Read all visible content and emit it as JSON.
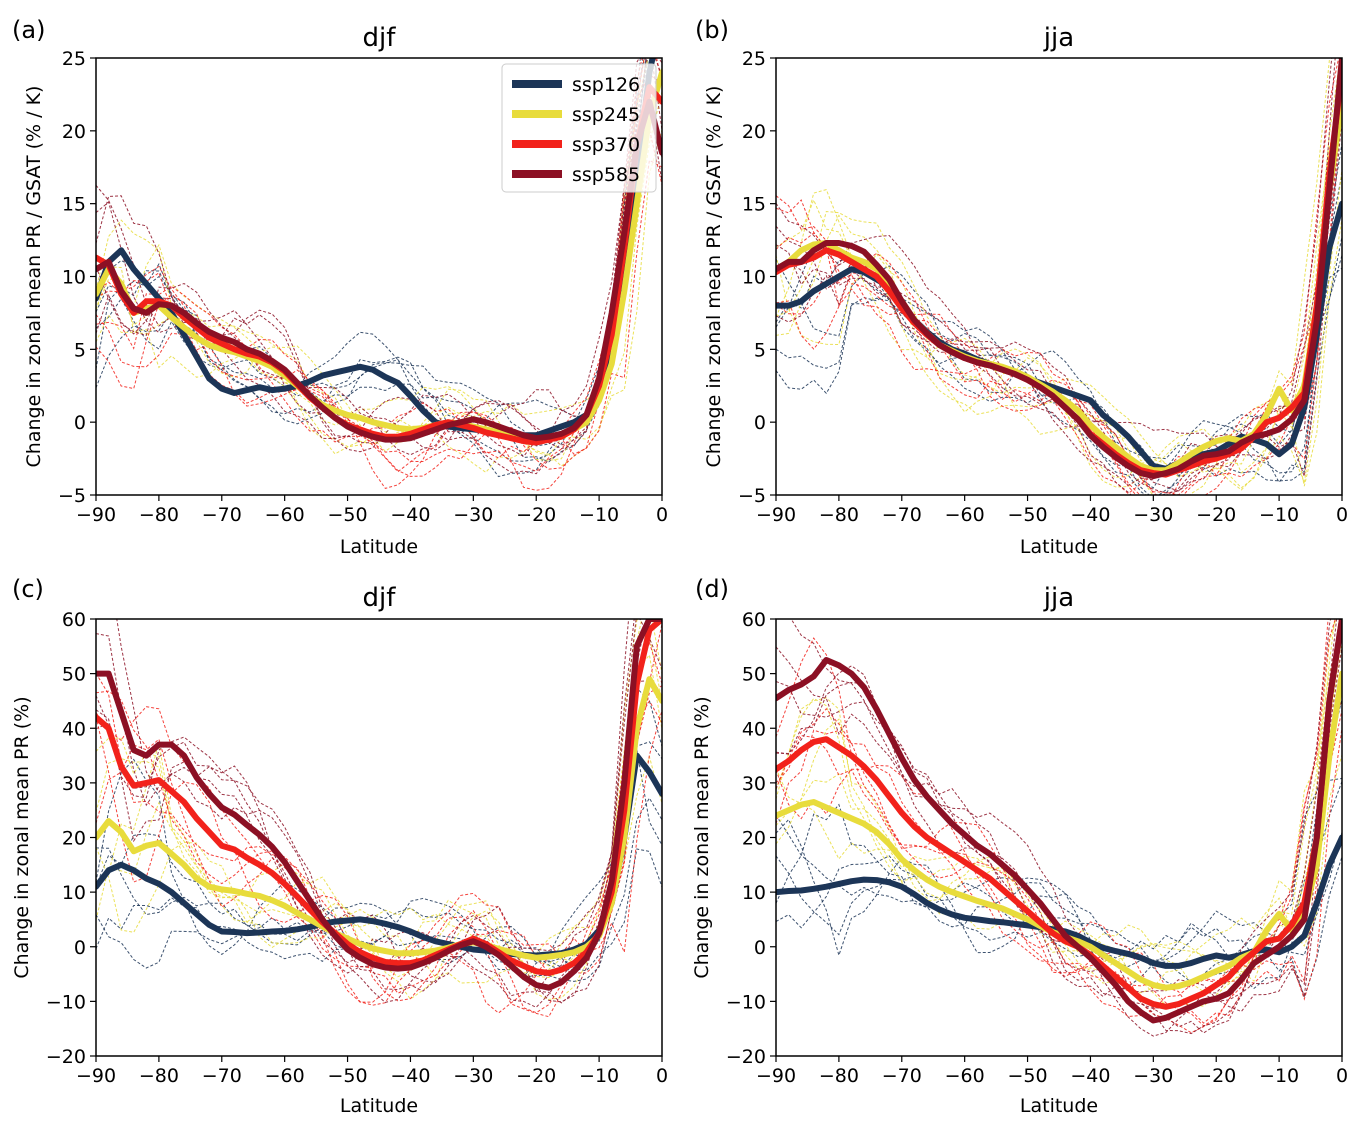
{
  "colors": {
    "ssp126": "#1c3557",
    "ssp245": "#e8dc3c",
    "ssp370": "#f2221b",
    "ssp585": "#8c1024"
  },
  "legend": {
    "placement": "top-right",
    "entries": [
      "ssp126",
      "ssp245",
      "ssp370",
      "ssp585"
    ]
  },
  "chart_data": [
    {
      "panel_label": "(a)",
      "title": "djf",
      "type": "line",
      "xlabel": "Latitude",
      "ylabel": "Change in zonal mean PR / GSAT (% / K)",
      "xlim": [
        -90,
        0
      ],
      "ylim": [
        -5,
        25
      ],
      "xticks": [
        -90,
        -80,
        -70,
        -60,
        -50,
        -40,
        -30,
        -20,
        -10,
        0
      ],
      "yticks": [
        -5,
        0,
        5,
        10,
        15,
        20,
        25
      ],
      "grid": false,
      "x": [
        -90,
        -88,
        -86,
        -84,
        -82,
        -80,
        -78,
        -76,
        -74,
        -72,
        -70,
        -68,
        -66,
        -64,
        -62,
        -60,
        -58,
        -56,
        -54,
        -52,
        -50,
        -48,
        -46,
        -44,
        -42,
        -40,
        -38,
        -36,
        -34,
        -32,
        -30,
        -28,
        -26,
        -24,
        -22,
        -20,
        -18,
        -16,
        -14,
        -12,
        -10,
        -8,
        -6,
        -4,
        -2,
        0
      ],
      "series": [
        {
          "name": "ssp126",
          "values": [
            8.5,
            11,
            11.8,
            10.5,
            9.5,
            8.5,
            7.5,
            6,
            4.5,
            3,
            2.3,
            2,
            2.2,
            2.4,
            2.2,
            2.3,
            2.5,
            2.8,
            3.2,
            3.4,
            3.6,
            3.8,
            3.6,
            3.1,
            2.7,
            1.8,
            0.8,
            0,
            -0.3,
            -0.4,
            -0.5,
            -0.6,
            -0.7,
            -0.8,
            -0.9,
            -0.9,
            -0.6,
            -0.3,
            0,
            0.5,
            2,
            5,
            10,
            17,
            24,
            28
          ]
        },
        {
          "name": "ssp245",
          "values": [
            8.8,
            10.5,
            9.5,
            7.5,
            7.8,
            8,
            7.2,
            6.5,
            5.8,
            5.3,
            5,
            4.8,
            4.5,
            4.2,
            3.8,
            3.2,
            2.5,
            1.8,
            1.2,
            0.8,
            0.5,
            0.3,
            0,
            -0.2,
            -0.4,
            -0.5,
            -0.4,
            -0.2,
            0,
            -0.1,
            -0.3,
            -0.5,
            -0.7,
            -0.8,
            -1,
            -1.2,
            -1.1,
            -0.9,
            -0.5,
            0,
            1.5,
            4,
            9,
            15,
            21,
            24
          ]
        },
        {
          "name": "ssp370",
          "values": [
            11.3,
            10.8,
            8.8,
            7.5,
            8.3,
            8.3,
            8,
            7.2,
            6.5,
            5.8,
            5.4,
            5,
            4.7,
            4.5,
            4.1,
            3.5,
            2.6,
            1.7,
            1,
            0.3,
            -0.2,
            -0.5,
            -0.8,
            -1,
            -1,
            -0.8,
            -0.5,
            -0.2,
            0,
            -0.2,
            -0.4,
            -0.7,
            -0.9,
            -1.1,
            -1.3,
            -1.4,
            -1.2,
            -1,
            -0.5,
            0.5,
            2.5,
            6,
            12,
            19,
            23,
            22
          ]
        },
        {
          "name": "ssp585",
          "values": [
            10.5,
            11,
            9,
            7.8,
            7.5,
            8.1,
            8,
            7.5,
            6.8,
            6.2,
            5.8,
            5.5,
            5,
            4.7,
            4.2,
            3.6,
            2.7,
            1.8,
            1,
            0.3,
            -0.3,
            -0.7,
            -1,
            -1.2,
            -1.2,
            -1.1,
            -0.8,
            -0.5,
            -0.2,
            0,
            0.2,
            0,
            -0.3,
            -0.6,
            -0.9,
            -1.1,
            -1,
            -0.8,
            -0.4,
            0.5,
            3,
            7.5,
            13,
            19,
            22,
            18.5
          ]
        }
      ]
    },
    {
      "panel_label": "(b)",
      "title": "jja",
      "type": "line",
      "xlabel": "Latitude",
      "ylabel": "Change in zonal mean PR / GSAT (% / K)",
      "xlim": [
        -90,
        0
      ],
      "ylim": [
        -5,
        25
      ],
      "xticks": [
        -90,
        -80,
        -70,
        -60,
        -50,
        -40,
        -30,
        -20,
        -10,
        0
      ],
      "yticks": [
        -5,
        0,
        5,
        10,
        15,
        20,
        25
      ],
      "grid": false,
      "x": [
        -90,
        -88,
        -86,
        -84,
        -82,
        -80,
        -78,
        -76,
        -74,
        -72,
        -70,
        -68,
        -66,
        -64,
        -62,
        -60,
        -58,
        -56,
        -54,
        -52,
        -50,
        -48,
        -46,
        -44,
        -42,
        -40,
        -38,
        -36,
        -34,
        -32,
        -30,
        -28,
        -26,
        -24,
        -22,
        -20,
        -18,
        -16,
        -14,
        -12,
        -10,
        -8,
        -6,
        -4,
        -2,
        0
      ],
      "series": [
        {
          "name": "ssp126",
          "values": [
            8,
            8,
            8.3,
            9,
            9.5,
            10,
            10.5,
            10.3,
            9.8,
            9.3,
            8.3,
            7,
            6.2,
            5.5,
            5,
            4.7,
            4.3,
            4,
            3.7,
            3.4,
            3,
            2.7,
            2.4,
            2.1,
            1.8,
            1.5,
            0.5,
            -0.2,
            -1,
            -2,
            -3,
            -3.2,
            -2.8,
            -2.5,
            -2.2,
            -2,
            -1.5,
            -1,
            -1.2,
            -1.5,
            -2.2,
            -1.5,
            1,
            6,
            12,
            15
          ]
        },
        {
          "name": "ssp245",
          "values": [
            10.5,
            11,
            11.8,
            12.2,
            12.3,
            11.8,
            11.3,
            11,
            10.5,
            9.5,
            8.3,
            7,
            6.1,
            5.3,
            4.9,
            4.5,
            4.2,
            4,
            3.8,
            3.5,
            3.1,
            2.6,
            2.1,
            1.5,
            0.8,
            -0.2,
            -1,
            -1.7,
            -2.4,
            -3,
            -3.3,
            -3.3,
            -2.8,
            -2.2,
            -1.7,
            -1.3,
            -1.1,
            -1.3,
            -0.8,
            0.5,
            2.3,
            0.8,
            2.5,
            8,
            16,
            22
          ]
        },
        {
          "name": "ssp370",
          "values": [
            10.3,
            10.8,
            11,
            11.3,
            11.8,
            11.5,
            11,
            10.5,
            10,
            9,
            7.8,
            6.8,
            6,
            5.3,
            4.8,
            4.4,
            4.1,
            3.9,
            3.6,
            3.3,
            2.9,
            2.4,
            1.8,
            1,
            0.2,
            -0.8,
            -1.5,
            -2.2,
            -2.8,
            -3.3,
            -3.5,
            -3.6,
            -3.3,
            -3,
            -2.7,
            -2.5,
            -2.2,
            -1.8,
            -1,
            0,
            0.3,
            1,
            2,
            8,
            17,
            24
          ]
        },
        {
          "name": "ssp585",
          "values": [
            10.5,
            11,
            11,
            11.8,
            12.3,
            12.3,
            12.1,
            11.7,
            10.8,
            9.8,
            8.3,
            7,
            6.1,
            5.3,
            4.8,
            4.4,
            4.1,
            3.9,
            3.6,
            3.3,
            2.9,
            2.4,
            1.8,
            1,
            0.2,
            -0.9,
            -1.7,
            -2.4,
            -3,
            -3.5,
            -3.7,
            -3.5,
            -3.2,
            -2.7,
            -2.3,
            -2.2,
            -2,
            -1.4,
            -1,
            -0.8,
            -0.5,
            0.2,
            1.5,
            7,
            16,
            25
          ]
        }
      ]
    },
    {
      "panel_label": "(c)",
      "title": "djf",
      "type": "line",
      "xlabel": "Latitude",
      "ylabel": "Change in zonal mean PR (%)",
      "xlim": [
        -90,
        0
      ],
      "ylim": [
        -20,
        60
      ],
      "xticks": [
        -90,
        -80,
        -70,
        -60,
        -50,
        -40,
        -30,
        -20,
        -10,
        0
      ],
      "yticks": [
        -20,
        -10,
        0,
        10,
        20,
        30,
        40,
        50,
        60
      ],
      "grid": false,
      "x": [
        -90,
        -88,
        -86,
        -84,
        -82,
        -80,
        -78,
        -76,
        -74,
        -72,
        -70,
        -68,
        -66,
        -64,
        -62,
        -60,
        -58,
        -56,
        -54,
        -52,
        -50,
        -48,
        -46,
        -44,
        -42,
        -40,
        -38,
        -36,
        -34,
        -32,
        -30,
        -28,
        -26,
        -24,
        -22,
        -20,
        -18,
        -16,
        -14,
        -12,
        -10,
        -8,
        -6,
        -4,
        -2,
        0
      ],
      "series": [
        {
          "name": "ssp126",
          "values": [
            11,
            14,
            15,
            14,
            12.5,
            11.5,
            10,
            8,
            6,
            4,
            2.8,
            2.7,
            2.5,
            2.6,
            2.8,
            2.9,
            3.2,
            3.6,
            4.2,
            4.6,
            4.8,
            5,
            4.7,
            4.2,
            3.6,
            2.8,
            1.8,
            1,
            0.5,
            0,
            -0.5,
            -0.7,
            -1,
            -1.3,
            -1.5,
            -1.6,
            -1.4,
            -1.2,
            -0.5,
            0.5,
            3,
            8,
            20,
            35,
            32,
            28
          ]
        },
        {
          "name": "ssp245",
          "values": [
            20,
            23,
            21,
            17.5,
            18.5,
            19,
            17,
            15,
            12.5,
            11,
            10.5,
            10.2,
            9.7,
            9.3,
            8.5,
            7.5,
            6.2,
            5,
            3.7,
            2.5,
            1.5,
            0.5,
            -0.3,
            -0.8,
            -1.2,
            -1.2,
            -1,
            -0.7,
            -0.2,
            0.5,
            0.8,
            0.3,
            -0.4,
            -1,
            -1.6,
            -2,
            -1.8,
            -1.5,
            -1,
            0,
            2,
            8,
            20,
            40,
            49,
            45
          ]
        },
        {
          "name": "ssp370",
          "values": [
            42,
            40,
            33,
            29.5,
            30,
            30.5,
            28.5,
            26.5,
            23.5,
            21,
            18.5,
            17.8,
            16.3,
            15,
            13.5,
            11.5,
            9.2,
            6.8,
            4.5,
            2.5,
            0.5,
            -1,
            -2,
            -2.8,
            -3,
            -3,
            -2.5,
            -1.5,
            -0.5,
            0.5,
            1.5,
            0.5,
            -1,
            -2.5,
            -3.5,
            -4.5,
            -4.8,
            -4.2,
            -3,
            -1,
            2.5,
            10,
            25,
            48,
            58,
            60
          ]
        },
        {
          "name": "ssp585",
          "values": [
            50,
            50,
            43,
            36,
            35,
            37,
            37,
            35,
            31,
            28,
            25.5,
            24.2,
            22.3,
            20.5,
            18.3,
            15.5,
            12,
            8.5,
            5,
            2,
            -0.5,
            -2,
            -3.2,
            -3.8,
            -4,
            -3.8,
            -3,
            -2,
            -0.8,
            0.3,
            1,
            0,
            -1.5,
            -3.5,
            -5.5,
            -7,
            -7.5,
            -6.5,
            -4.5,
            -2,
            2.5,
            12,
            30,
            55,
            60,
            60
          ]
        }
      ]
    },
    {
      "panel_label": "(d)",
      "title": "jja",
      "type": "line",
      "xlabel": "Latitude",
      "ylabel": "Change in zonal mean PR (%)",
      "xlim": [
        -90,
        0
      ],
      "ylim": [
        -20,
        60
      ],
      "xticks": [
        -90,
        -80,
        -70,
        -60,
        -50,
        -40,
        -30,
        -20,
        -10,
        0
      ],
      "yticks": [
        -20,
        -10,
        0,
        10,
        20,
        30,
        40,
        50,
        60
      ],
      "grid": false,
      "x": [
        -90,
        -88,
        -86,
        -84,
        -82,
        -80,
        -78,
        -76,
        -74,
        -72,
        -70,
        -68,
        -66,
        -64,
        -62,
        -60,
        -58,
        -56,
        -54,
        -52,
        -50,
        -48,
        -46,
        -44,
        -42,
        -40,
        -38,
        -36,
        -34,
        -32,
        -30,
        -28,
        -26,
        -24,
        -22,
        -20,
        -18,
        -16,
        -14,
        -12,
        -10,
        -8,
        -6,
        -4,
        -2,
        0
      ],
      "series": [
        {
          "name": "ssp126",
          "values": [
            10,
            10.2,
            10.3,
            10.6,
            11,
            11.5,
            12,
            12.3,
            12.2,
            11.8,
            11,
            9.6,
            8,
            6.8,
            5.9,
            5.3,
            5,
            4.7,
            4.5,
            4.2,
            3.9,
            3.6,
            3.2,
            2.8,
            2,
            0.8,
            -0.2,
            -0.8,
            -1.3,
            -2,
            -3,
            -3.5,
            -3.5,
            -3,
            -2.2,
            -1.6,
            -2,
            -1.5,
            -0.8,
            -0.5,
            -1,
            0,
            2,
            8,
            15,
            20
          ]
        },
        {
          "name": "ssp245",
          "values": [
            24,
            25,
            26,
            26.5,
            25.5,
            24.5,
            23.5,
            22.5,
            21,
            18.8,
            16,
            14,
            12.3,
            11,
            10,
            9.2,
            8.4,
            7.7,
            7,
            6,
            5,
            3.8,
            2.7,
            1.8,
            1,
            0,
            -1.5,
            -3,
            -4.5,
            -6,
            -7,
            -7.5,
            -7.2,
            -6.5,
            -5.5,
            -4.5,
            -3.5,
            -2,
            -1,
            3,
            6,
            3,
            6,
            15,
            35,
            50
          ]
        },
        {
          "name": "ssp370",
          "values": [
            32.5,
            34,
            36,
            37.5,
            38,
            36.5,
            35,
            33,
            30.5,
            27.5,
            24.5,
            22,
            20,
            18.5,
            17,
            15.5,
            14,
            12.5,
            10.5,
            8.5,
            6.5,
            4.5,
            2.5,
            1,
            0,
            -1.5,
            -3.5,
            -5.5,
            -7.5,
            -9.5,
            -10.5,
            -11,
            -10.5,
            -9.5,
            -8.5,
            -7,
            -5.5,
            -3,
            -1,
            1,
            1.5,
            4,
            8,
            20,
            45,
            60
          ]
        },
        {
          "name": "ssp585",
          "values": [
            45.5,
            47,
            48,
            49.5,
            52.5,
            51.5,
            50,
            47.5,
            43.5,
            39,
            34.5,
            30.5,
            27.5,
            25,
            22.5,
            20.5,
            18.5,
            17,
            15,
            13,
            10.5,
            8,
            5,
            2,
            0,
            -2,
            -4.5,
            -7,
            -10,
            -12,
            -13.5,
            -13,
            -12,
            -11,
            -10,
            -9.5,
            -8.5,
            -6,
            -3,
            -1.5,
            0,
            2,
            5,
            20,
            45,
            60
          ]
        }
      ]
    }
  ]
}
